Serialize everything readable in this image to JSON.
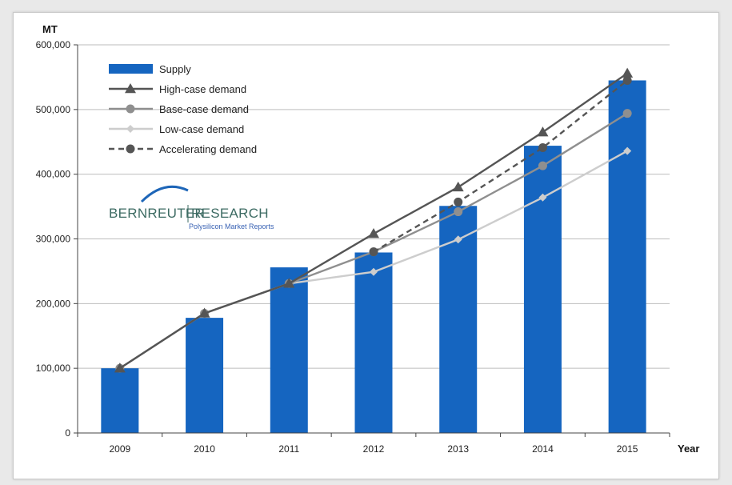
{
  "chart_data": {
    "type": "bar+line",
    "title": "",
    "ylabel": "MT",
    "xlabel": "Year",
    "ylim": [
      0,
      600000
    ],
    "yticks": [
      0,
      100000,
      200000,
      300000,
      400000,
      500000,
      600000
    ],
    "ytick_labels": [
      "0",
      "100,000",
      "200,000",
      "300,000",
      "400,000",
      "500,000",
      "600,000"
    ],
    "grid": "horizontal",
    "legend_position": "top-left",
    "categories": [
      "2009",
      "2010",
      "2011",
      "2012",
      "2013",
      "2014",
      "2015"
    ],
    "bars": {
      "name": "Supply",
      "color": "#1565c0",
      "values": [
        100000,
        178000,
        256000,
        279000,
        351000,
        444000,
        545000
      ]
    },
    "series": [
      {
        "name": "High-case demand",
        "color": "#555555",
        "marker": "triangle",
        "dash": "solid",
        "values": [
          100000,
          185000,
          231000,
          308000,
          380000,
          465000,
          556000
        ]
      },
      {
        "name": "Base-case demand",
        "color": "#8f8f8f",
        "marker": "circle",
        "dash": "solid",
        "values": [
          100000,
          185000,
          231000,
          280000,
          342000,
          413000,
          494000
        ]
      },
      {
        "name": "Low-case demand",
        "color": "#cdcdcd",
        "marker": "diamond",
        "dash": "solid",
        "values": [
          100000,
          185000,
          231000,
          249000,
          299000,
          364000,
          436000
        ]
      },
      {
        "name": "Accelerating demand",
        "color": "#555555",
        "marker": "circle",
        "dash": "dashed",
        "values": [
          null,
          null,
          null,
          280000,
          357000,
          441000,
          545000
        ]
      }
    ]
  },
  "logo": {
    "part1": "BERNREUTER",
    "part2": "RESEARCH",
    "tagline": "Polysilicon Market Reports"
  }
}
